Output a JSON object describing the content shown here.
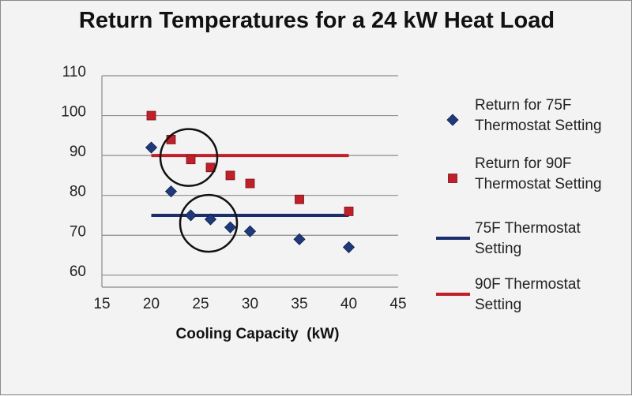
{
  "chart_data": {
    "type": "scatter",
    "title": "Return Temperatures for a 24 kW Heat Load",
    "xlabel": "Cooling Capacity  (kW)",
    "ylabel": "",
    "xlim": [
      15,
      45
    ],
    "ylim": [
      57,
      110
    ],
    "x_ticks": [
      "15",
      "20",
      "25",
      "30",
      "35",
      "40",
      "45"
    ],
    "y_ticks": [
      "110",
      "100",
      "90",
      "80",
      "70",
      "60"
    ],
    "grid": "horizontal",
    "legend_position": "right",
    "series": [
      {
        "name": "Return for 75F Thermostat Setting",
        "legend_lines": [
          "Return for 75F",
          "Thermostat Setting"
        ],
        "marker": "diamond",
        "color": "#1f3a7a",
        "points": [
          {
            "x": 20,
            "y": 92
          },
          {
            "x": 22,
            "y": 81
          },
          {
            "x": 24,
            "y": 75
          },
          {
            "x": 26,
            "y": 74
          },
          {
            "x": 28,
            "y": 72
          },
          {
            "x": 30,
            "y": 71
          },
          {
            "x": 35,
            "y": 69
          },
          {
            "x": 40,
            "y": 67
          }
        ]
      },
      {
        "name": "Return for 90F Thermostat Setting",
        "legend_lines": [
          "Return for 90F",
          "Thermostat Setting"
        ],
        "marker": "square",
        "color": "#c0202a",
        "points": [
          {
            "x": 20,
            "y": 100
          },
          {
            "x": 22,
            "y": 94
          },
          {
            "x": 24,
            "y": 89
          },
          {
            "x": 26,
            "y": 87
          },
          {
            "x": 28,
            "y": 85
          },
          {
            "x": 30,
            "y": 83
          },
          {
            "x": 35,
            "y": 79
          },
          {
            "x": 40,
            "y": 76
          }
        ]
      },
      {
        "name": "75F Thermostat Setting",
        "legend_lines": [
          "75F Thermostat",
          "Setting"
        ],
        "marker": "line",
        "color": "#1b2d6b",
        "points": [
          {
            "x": 20,
            "y": 75
          },
          {
            "x": 40,
            "y": 75
          }
        ]
      },
      {
        "name": "90F Thermostat Setting",
        "legend_lines": [
          "90F Thermostat",
          "Setting"
        ],
        "marker": "line",
        "color": "#c0202a",
        "points": [
          {
            "x": 20,
            "y": 90
          },
          {
            "x": 40,
            "y": 90
          }
        ]
      }
    ],
    "annotations": [
      {
        "type": "circle",
        "cx": 23.8,
        "cy": 89.5
      },
      {
        "type": "circle",
        "cx": 25.8,
        "cy": 73
      }
    ]
  }
}
